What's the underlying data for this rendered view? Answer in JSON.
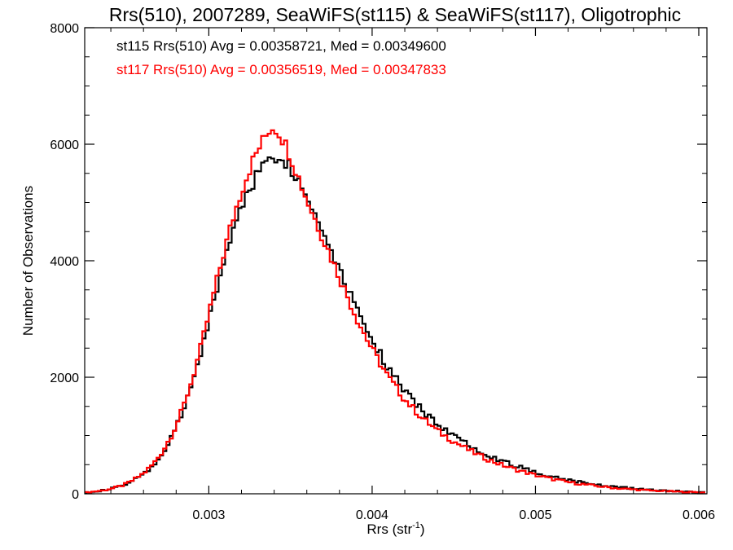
{
  "chart_data": {
    "type": "line",
    "title": "Rrs(510), 2007289, SeaWiFS(st115) & SeaWiFS(st117), Oligotrophic",
    "xlabel": "Rrs (str",
    "xlabel_sup": "-1",
    "xlabel_close": ")",
    "ylabel": "Number of Observations",
    "xlim": [
      0.00224,
      0.00605
    ],
    "ylim": [
      0,
      8000
    ],
    "x_ticks": [
      0.003,
      0.004,
      0.005,
      0.006
    ],
    "x_tick_labels": [
      "0.003",
      "0.004",
      "0.005",
      "0.006"
    ],
    "y_ticks": [
      0,
      2000,
      4000,
      6000,
      8000
    ],
    "y_tick_labels": [
      "0",
      "2000",
      "4000",
      "6000",
      "8000"
    ],
    "grid": false,
    "bin_width": 2e-05,
    "series": [
      {
        "name": "st115",
        "color": "#000000",
        "annotation": "st115 Rrs(510) Avg = 0.00358721, Med = 0.00349600",
        "x": [
          0.00224,
          0.0023,
          0.00236,
          0.00242,
          0.00248,
          0.00254,
          0.0026,
          0.00266,
          0.00272,
          0.00278,
          0.00284,
          0.0029,
          0.00296,
          0.00302,
          0.00308,
          0.00314,
          0.0032,
          0.00326,
          0.0033,
          0.00334,
          0.00338,
          0.00342,
          0.00346,
          0.0035,
          0.00354,
          0.0036,
          0.00366,
          0.00372,
          0.00378,
          0.00384,
          0.0039,
          0.00396,
          0.00402,
          0.0041,
          0.0042,
          0.0043,
          0.0044,
          0.0045,
          0.0046,
          0.0047,
          0.0048,
          0.0049,
          0.005,
          0.0051,
          0.0052,
          0.0053,
          0.0054,
          0.0055,
          0.0056,
          0.0057,
          0.0058,
          0.0059,
          0.006,
          0.00605
        ],
        "y": [
          20,
          40,
          60,
          100,
          150,
          230,
          330,
          480,
          700,
          1000,
          1400,
          1900,
          2500,
          3200,
          3850,
          4450,
          4950,
          5300,
          5500,
          5650,
          5750,
          5800,
          5750,
          5600,
          5400,
          5100,
          4750,
          4400,
          4000,
          3600,
          3250,
          2900,
          2550,
          2150,
          1750,
          1450,
          1200,
          1000,
          830,
          680,
          560,
          460,
          370,
          300,
          240,
          190,
          150,
          115,
          90,
          70,
          55,
          40,
          30,
          25
        ]
      },
      {
        "name": "st117",
        "color": "#ff0000",
        "annotation": "st117 Rrs(510) Avg = 0.00356519, Med = 0.00347833",
        "x": [
          0.00224,
          0.0023,
          0.00236,
          0.00242,
          0.00248,
          0.00254,
          0.0026,
          0.00266,
          0.00272,
          0.00278,
          0.00284,
          0.0029,
          0.00296,
          0.00302,
          0.00308,
          0.00314,
          0.0032,
          0.00326,
          0.0033,
          0.00334,
          0.00338,
          0.00342,
          0.00346,
          0.0035,
          0.00354,
          0.0036,
          0.00366,
          0.00372,
          0.00378,
          0.00384,
          0.0039,
          0.00396,
          0.00402,
          0.0041,
          0.0042,
          0.0043,
          0.0044,
          0.0045,
          0.0046,
          0.0047,
          0.0048,
          0.0049,
          0.005,
          0.0051,
          0.0052,
          0.0053,
          0.0054,
          0.0055,
          0.0056,
          0.0057,
          0.0058,
          0.0059,
          0.006,
          0.00605
        ],
        "y": [
          20,
          40,
          60,
          100,
          150,
          240,
          350,
          510,
          740,
          1050,
          1450,
          1980,
          2600,
          3320,
          4000,
          4650,
          5200,
          5650,
          5900,
          6100,
          6300,
          6250,
          6050,
          5800,
          5500,
          5050,
          4650,
          4250,
          3850,
          3450,
          3050,
          2700,
          2380,
          2000,
          1620,
          1320,
          1080,
          900,
          740,
          600,
          490,
          400,
          320,
          255,
          200,
          160,
          125,
          95,
          75,
          57,
          45,
          33,
          25,
          20
        ]
      }
    ]
  }
}
